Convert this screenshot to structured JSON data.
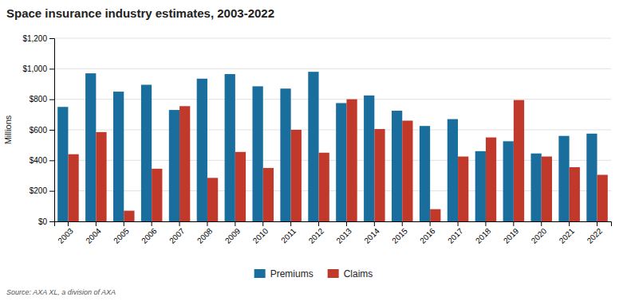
{
  "chart_data": {
    "type": "bar",
    "title": "Space insurance industry estimates, 2003-2022",
    "annotations": [
      "Source: AXA XL, a division of AXA"
    ],
    "ylabel": "Millions",
    "categories": [
      "2003",
      "2004",
      "2005",
      "2006",
      "2007",
      "2008",
      "2009",
      "2010",
      "2011",
      "2012",
      "2013",
      "2014",
      "2015",
      "2016",
      "2017",
      "2018",
      "2019",
      "2020",
      "2021",
      "2022"
    ],
    "series": [
      {
        "name": "Premiums",
        "color": "#1a6e9e",
        "values": [
          750,
          970,
          850,
          895,
          730,
          935,
          965,
          885,
          870,
          980,
          775,
          825,
          725,
          625,
          670,
          460,
          525,
          445,
          560,
          575
        ]
      },
      {
        "name": "Claims",
        "color": "#c0392b",
        "values": [
          440,
          585,
          70,
          345,
          755,
          285,
          455,
          350,
          600,
          450,
          800,
          605,
          660,
          80,
          425,
          550,
          795,
          425,
          355,
          305
        ]
      }
    ],
    "ylim": [
      0,
      1200
    ],
    "yticks": [
      {
        "value": 0,
        "label": "$0"
      },
      {
        "value": 200,
        "label": "$200"
      },
      {
        "value": 400,
        "label": "$400"
      },
      {
        "value": 600,
        "label": "$600"
      },
      {
        "value": 800,
        "label": "$800"
      },
      {
        "value": 1000,
        "label": "$1,000"
      },
      {
        "value": 1200,
        "label": "$1,200"
      }
    ],
    "grid": true,
    "legend": "bottom"
  }
}
